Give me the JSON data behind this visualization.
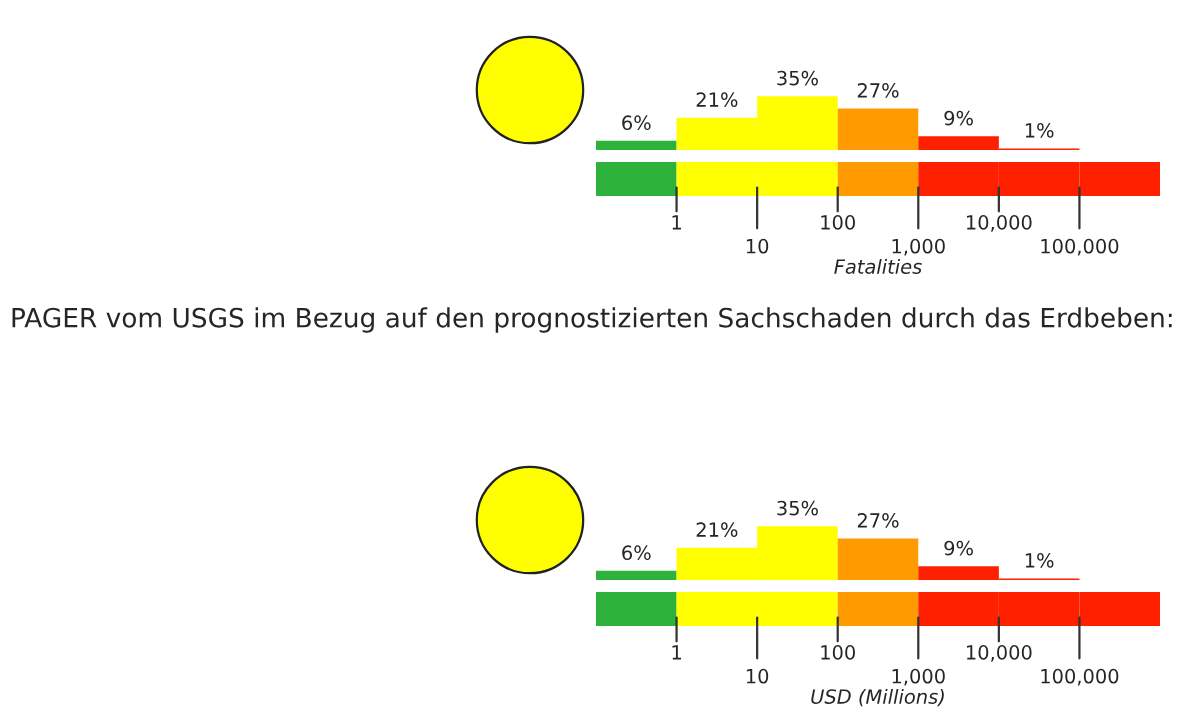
{
  "chart_data": [
    {
      "type": "bar",
      "xlabel": "Fatalities",
      "categories": [
        null,
        null,
        null,
        null,
        null,
        null,
        null
      ],
      "values": [
        6,
        21,
        35,
        27,
        9,
        1,
        0
      ],
      "value_labels": [
        "6%",
        "21%",
        "35%",
        "27%",
        "9%",
        "1%",
        null
      ],
      "colors": [
        "#2db33c",
        "#ffff00",
        "#ffff00",
        "#ff9a00",
        "#ff2000",
        "#ff2000",
        "#ff2000"
      ],
      "annotations": [
        "1",
        "10",
        "100",
        "1,000",
        "10,000",
        "100,000"
      ]
    },
    {
      "type": "bar",
      "title": "PAGER vom USGS im Bezug auf den prognostizierten Sachschaden durch das Erdbeben:",
      "xlabel": "USD (Millions)",
      "categories": [
        null,
        null,
        null,
        null,
        null,
        null,
        null
      ],
      "values": [
        6,
        21,
        35,
        27,
        9,
        1,
        0
      ],
      "value_labels": [
        "6%",
        "21%",
        "35%",
        "27%",
        "9%",
        "1%",
        null
      ],
      "colors": [
        "#2db33c",
        "#ffff00",
        "#ffff00",
        "#ff9a00",
        "#ff2000",
        "#ff2000",
        "#ff2000"
      ],
      "annotations": [
        "1",
        "10",
        "100",
        "1,000",
        "10,000",
        "100,000"
      ]
    }
  ]
}
